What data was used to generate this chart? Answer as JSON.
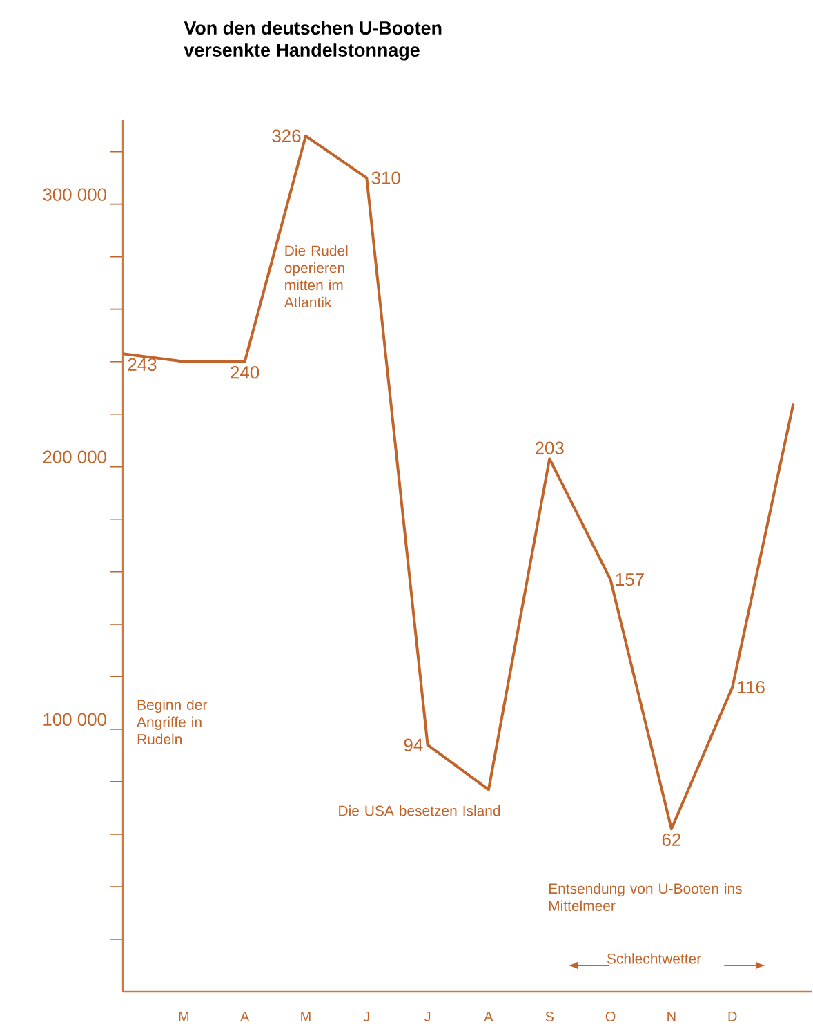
{
  "chart_data": {
    "type": "line",
    "title": "Von den deutschen U-Booten\nversenkte Handelstonnage",
    "color": "#c0642a",
    "marker": "none",
    "categories": [
      null,
      "M",
      "A",
      "M",
      "J",
      "J",
      "A",
      "S",
      "O",
      "N",
      "D",
      null
    ],
    "values": [
      243000,
      240000,
      240000,
      326000,
      310000,
      94000,
      77000,
      203000,
      157000,
      62000,
      116000,
      224000
    ],
    "ylim": [
      0,
      332000
    ],
    "yticks": [
      {
        "value": 20000,
        "label": null
      },
      {
        "value": 40000,
        "label": null
      },
      {
        "value": 60000,
        "label": null
      },
      {
        "value": 80000,
        "label": null
      },
      {
        "value": 100000,
        "label": "100 000"
      },
      {
        "value": 120000,
        "label": null
      },
      {
        "value": 140000,
        "label": null
      },
      {
        "value": 160000,
        "label": null
      },
      {
        "value": 180000,
        "label": null
      },
      {
        "value": 200000,
        "label": "200 000"
      },
      {
        "value": 220000,
        "label": null
      },
      {
        "value": 240000,
        "label": null
      },
      {
        "value": 260000,
        "label": null
      },
      {
        "value": 280000,
        "label": null
      },
      {
        "value": 300000,
        "label": "300 000"
      },
      {
        "value": 320000,
        "label": null
      }
    ],
    "annotations": [
      "Die Rudel operieren mitten im Atlantik",
      "Beginn der Angriffe in Rudeln",
      "Die USA besetzen Island",
      "Entsendung von U-Booten ins Mittelmeer",
      "Schlechtwetter",
      "243",
      "240",
      "326",
      "310",
      "94",
      "203",
      "157",
      "62",
      "116"
    ]
  }
}
